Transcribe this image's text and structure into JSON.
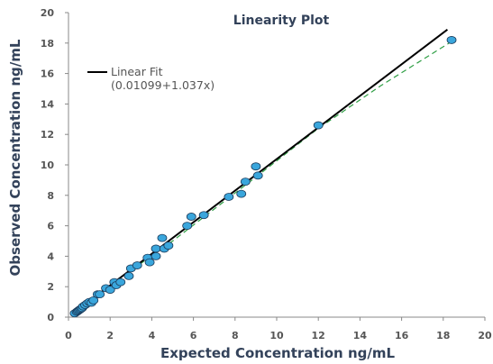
{
  "chart_data": {
    "type": "scatter",
    "title": "Linearity Plot",
    "xlabel": "Expected Concentration ng/mL",
    "ylabel": "Observed Concentration ng/mL",
    "xlim": [
      0,
      20
    ],
    "ylim": [
      0,
      20
    ],
    "xticks": [
      0,
      2,
      4,
      6,
      8,
      10,
      12,
      14,
      16,
      18,
      20
    ],
    "yticks": [
      0,
      2,
      4,
      6,
      8,
      10,
      12,
      14,
      16,
      18,
      20
    ],
    "grid": false,
    "legend": {
      "placement": "top-left",
      "label": "Linear Fit",
      "equation": "(0.01099+1.037x)"
    },
    "fit_line": {
      "intercept": 0.01099,
      "slope": 1.037,
      "x_range": [
        0.3,
        18.2
      ],
      "color": "#000000"
    },
    "trend_line": {
      "style": "dashed",
      "color": "#2e9e44",
      "x": [
        0.3,
        2,
        5,
        9,
        12,
        15,
        18.4
      ],
      "y": [
        0.3,
        2.1,
        5.0,
        9.2,
        12.4,
        15.2,
        18.1
      ]
    },
    "series": [
      {
        "marker_color": "#3aa6dc",
        "marker_edge": "#1a3a5a",
        "x": [
          0.3,
          0.4,
          0.45,
          0.5,
          0.55,
          0.6,
          0.65,
          0.7,
          0.8,
          0.9,
          1.0,
          1.1,
          1.2,
          1.4,
          1.5,
          1.8,
          2.0,
          2.2,
          2.3,
          2.5,
          2.9,
          3.0,
          3.3,
          3.8,
          3.9,
          4.2,
          4.2,
          4.5,
          4.6,
          4.8,
          5.7,
          5.9,
          6.5,
          7.7,
          8.3,
          8.5,
          9.0,
          9.1,
          12.0,
          18.4
        ],
        "y": [
          0.25,
          0.35,
          0.4,
          0.45,
          0.5,
          0.55,
          0.6,
          0.7,
          0.8,
          0.9,
          1.0,
          0.95,
          1.1,
          1.5,
          1.5,
          1.9,
          1.8,
          2.3,
          2.1,
          2.3,
          2.7,
          3.2,
          3.4,
          3.9,
          3.6,
          4.5,
          4.0,
          5.2,
          4.5,
          4.7,
          6.0,
          6.6,
          6.7,
          7.9,
          8.1,
          8.9,
          9.9,
          9.3,
          12.6,
          18.2
        ]
      }
    ]
  }
}
